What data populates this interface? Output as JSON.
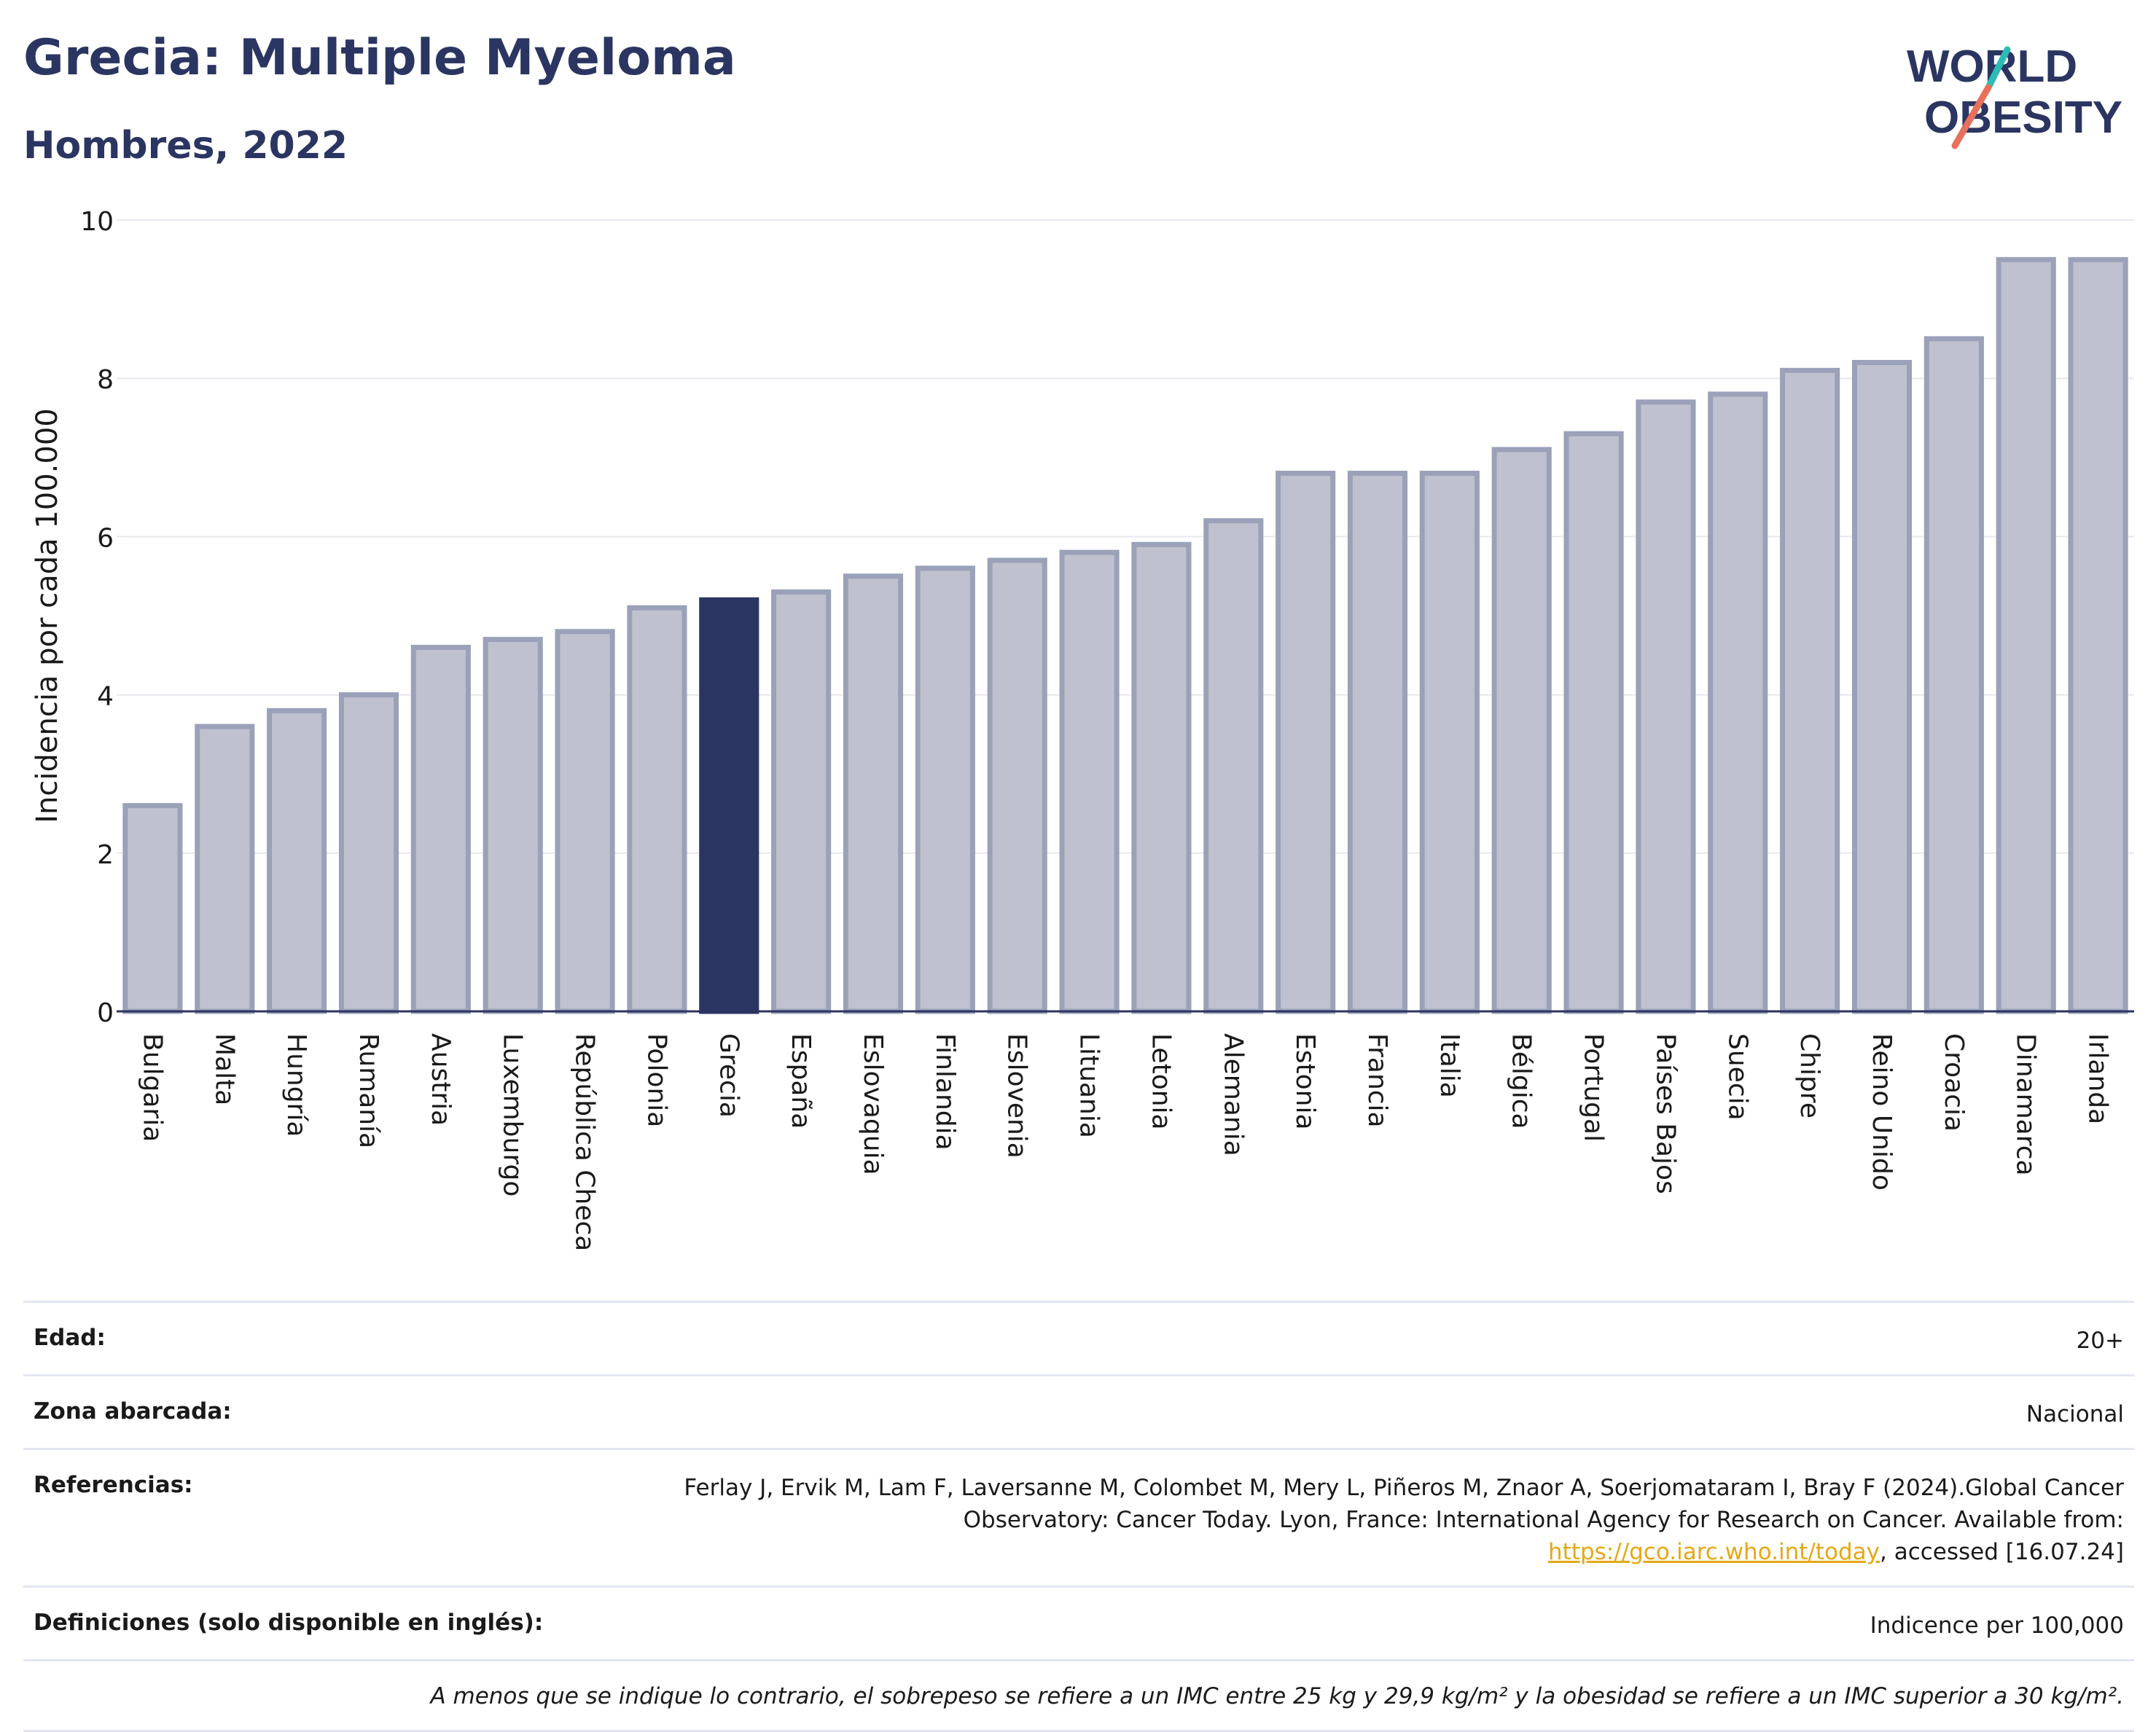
{
  "header": {
    "title": "Grecia: Multiple Myeloma",
    "subtitle": "Hombres, 2022",
    "logo_line1": "WORLD",
    "logo_line2": "OBESITY"
  },
  "colors": {
    "bar": "#bfc2ce",
    "bar_outline": "#9aa1b8",
    "highlight": "#2b3561",
    "title": "#2b3561",
    "logo_teal": "#2cbcb5",
    "logo_coral": "#e8705c",
    "link": "#e6a817"
  },
  "chart_data": {
    "type": "bar",
    "ylabel": "Incidencia por cada 100.000",
    "ylim": [
      0,
      10
    ],
    "yticks": [
      0,
      2,
      4,
      6,
      8,
      10
    ],
    "highlight": "Grecia",
    "categories": [
      "Bulgaria",
      "Malta",
      "Hungría",
      "Rumanía",
      "Austria",
      "Luxemburgo",
      "República Checa",
      "Polonia",
      "Grecia",
      "España",
      "Eslovaquia",
      "Finlandia",
      "Eslovenia",
      "Lituania",
      "Letonia",
      "Alemania",
      "Estonia",
      "Francia",
      "Italia",
      "Bélgica",
      "Portugal",
      "Países Bajos",
      "Suecia",
      "Chipre",
      "Reino Unido",
      "Croacia",
      "Dinamarca",
      "Irlanda"
    ],
    "values": [
      2.6,
      3.6,
      3.8,
      4.0,
      4.6,
      4.7,
      4.8,
      5.1,
      5.2,
      5.3,
      5.5,
      5.6,
      5.7,
      5.8,
      5.9,
      6.2,
      6.8,
      6.8,
      6.8,
      7.1,
      7.3,
      7.7,
      7.8,
      8.1,
      8.2,
      8.5,
      9.5,
      9.5
    ]
  },
  "info": {
    "age_label": "Edad:",
    "age_value": "20+",
    "zone_label": "Zona abarcada:",
    "zone_value": "Nacional",
    "refs_label": "Referencias:",
    "refs_text1": "Ferlay J, Ervik M, Lam F, Laversanne M, Colombet M, Mery L, Piñeros M, Znaor A, Soerjomataram I, Bray F (2024).Global Cancer Observatory: Cancer Today. Lyon, France: International Agency for Research on Cancer. Available from: ",
    "refs_link": "https://gco.iarc.who.int/today",
    "refs_text2": ", accessed [16.07.24]",
    "defs_label": "Definiciones (solo disponible en inglés):",
    "defs_value": "Indicence per 100,000",
    "note": "A menos que se indique lo contrario, el sobrepeso se refiere a un IMC entre 25 kg y 29,9 kg/m² y la obesidad se refiere a un IMC superior a 30 kg/m²."
  }
}
